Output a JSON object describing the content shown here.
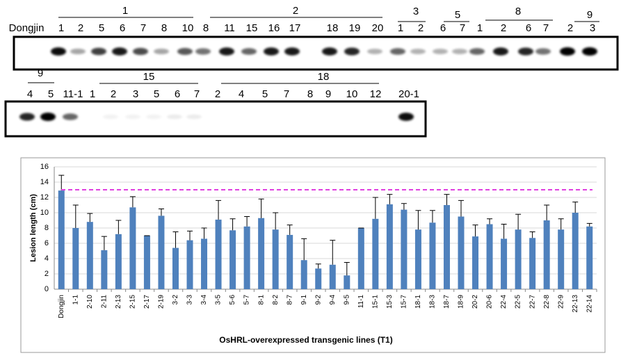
{
  "blots": [
    {
      "groups": [
        "1",
        "2",
        "3",
        "5",
        "8",
        "9"
      ],
      "lanes": [
        "Dongjin",
        "1",
        "2",
        "5",
        "6",
        "7",
        "8",
        "10",
        "8",
        "11",
        "15",
        "16",
        "17",
        "18",
        "19",
        "20",
        "1",
        "2",
        "6",
        "7",
        "1",
        "2",
        "6",
        "7",
        "2",
        "3"
      ]
    },
    {
      "groups": [
        "9",
        "15",
        "18"
      ],
      "lanes": [
        "4",
        "5",
        "11-1",
        "1",
        "2",
        "3",
        "5",
        "6",
        "7",
        "2",
        "4",
        "5",
        "7",
        "8",
        "9",
        "10",
        "12",
        "20-1"
      ]
    }
  ],
  "chart_data": {
    "type": "bar",
    "x_label": "OsHRL-overexpressed transgenic lines (T1)",
    "y_label": "Lesion length (cm)",
    "categories": [
      "Dongjin",
      "1-1",
      "2-10",
      "2-11",
      "2-13",
      "2-15",
      "2-17",
      "2-19",
      "3-2",
      "3-3",
      "3-4",
      "3-5",
      "5-6",
      "5-7",
      "8-1",
      "8-2",
      "8-7",
      "9-1",
      "9-2",
      "9-4",
      "9-5",
      "11-1",
      "15-1",
      "15-3",
      "15-7",
      "18-1",
      "18-3",
      "18-7",
      "18-9",
      "20-2",
      "20-6",
      "22-4",
      "22-5",
      "22-7",
      "22-8",
      "22-9",
      "22-13",
      "22-14"
    ],
    "values": [
      12.9,
      8.0,
      8.8,
      5.1,
      7.2,
      10.7,
      7.0,
      9.6,
      5.4,
      6.4,
      6.6,
      9.1,
      7.7,
      8.2,
      9.3,
      7.8,
      7.1,
      3.8,
      2.7,
      3.2,
      1.8,
      8.0,
      9.2,
      11.1,
      10.4,
      7.8,
      8.7,
      11.0,
      9.5,
      6.9,
      8.5,
      6.6,
      7.8,
      6.7,
      9.0,
      7.8,
      10.0,
      8.2
    ],
    "errors": [
      2.0,
      3.0,
      1.1,
      1.8,
      1.8,
      1.4,
      0,
      0.9,
      2.1,
      1.2,
      1.4,
      2.5,
      1.5,
      1.3,
      2.5,
      2.2,
      1.3,
      2.8,
      0.6,
      3.2,
      1.7,
      0,
      2.8,
      1.3,
      0.8,
      2.5,
      1.6,
      1.4,
      2.1,
      1.5,
      0.7,
      1.9,
      2.0,
      0.8,
      2.0,
      1.4,
      1.4,
      0.4
    ],
    "color": "#4f81bd",
    "reference_line": {
      "value": 13,
      "color": "#e040e0"
    },
    "ylim": [
      0,
      16
    ],
    "yticks": [
      0,
      2,
      4,
      6,
      8,
      10,
      12,
      14,
      16
    ],
    "grid": true
  }
}
